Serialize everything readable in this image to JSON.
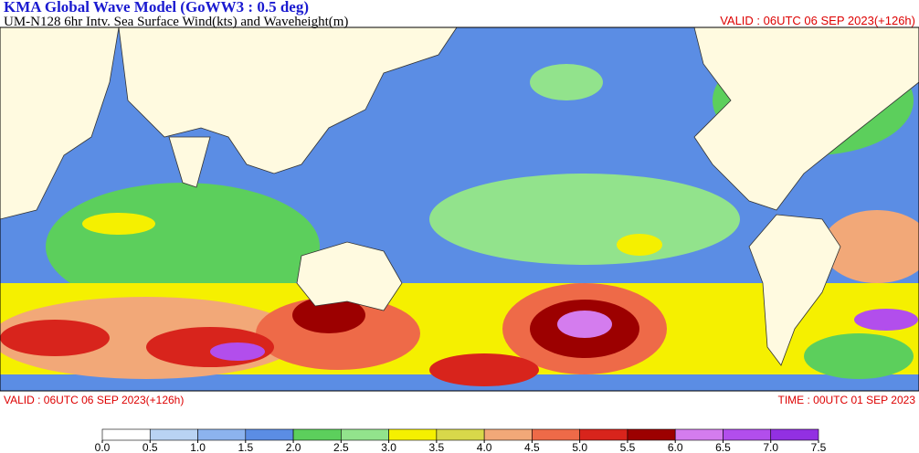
{
  "header": {
    "title": "KMA  Global Wave Model (GoWW3 : 0.5 deg)",
    "subtitle": "UM-N128  6hr Intv. Sea Surface Wind(kts) and Waveheight(m)",
    "valid": "VALID : 06UTC 06 SEP 2023(+126h)"
  },
  "footer": {
    "valid": "VALID : 06UTC 06 SEP 2023(+126h)",
    "time": "TIME : 00UTC 01 SEP 2023"
  },
  "colorbar": {
    "ticks": [
      {
        "value": 0,
        "label": "0.0"
      },
      {
        "value": 0.5,
        "label": "0.5"
      },
      {
        "value": 1,
        "label": "1.0"
      },
      {
        "value": 1.5,
        "label": "1.5"
      },
      {
        "value": 2,
        "label": "2.0"
      },
      {
        "value": 2.5,
        "label": "2.5"
      },
      {
        "value": 3,
        "label": "3.0"
      },
      {
        "value": 3.5,
        "label": "3.5"
      },
      {
        "value": 4,
        "label": "4.0"
      },
      {
        "value": 4.5,
        "label": "4.5"
      },
      {
        "value": 5,
        "label": "5.0"
      },
      {
        "value": 5.5,
        "label": "5.5"
      },
      {
        "value": 6,
        "label": "6.0"
      },
      {
        "value": 6.5,
        "label": "6.5"
      },
      {
        "value": 7,
        "label": "7.0"
      },
      {
        "value": 7.5,
        "label": "7.5"
      }
    ],
    "colors": [
      "#ffffff",
      "#b9d3f3",
      "#8cb3ee",
      "#5b8de4",
      "#5ccf5c",
      "#92e38c",
      "#f5f000",
      "#d8d84a",
      "#f2a878",
      "#ee6a48",
      "#d8241c",
      "#9c0000",
      "#d47cee",
      "#b24eec",
      "#9230e2"
    ]
  }
}
